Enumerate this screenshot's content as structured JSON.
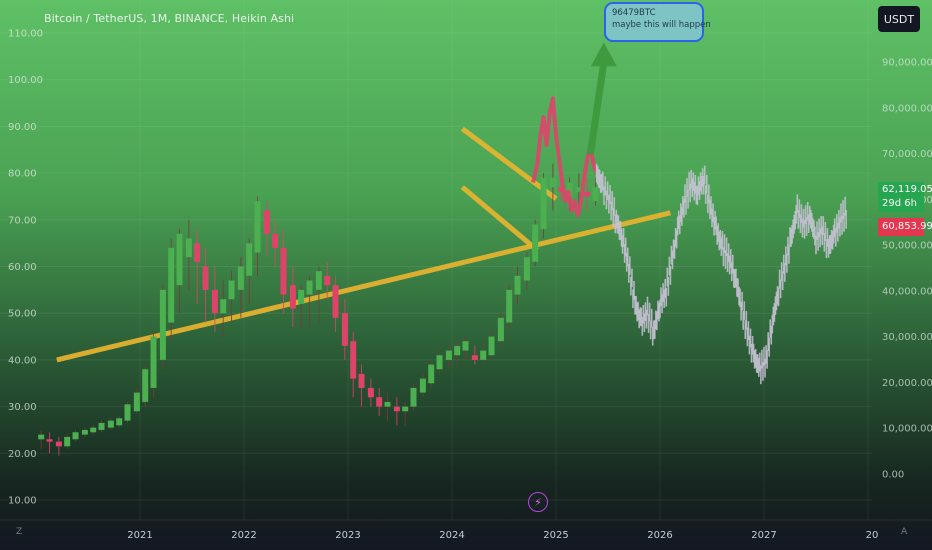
{
  "header": {
    "symbol_title": "Bitcoin / TetherUS, 1M, BINANCE, Heikin Ashi",
    "currency": "USDT"
  },
  "annotation": {
    "line1": "96479BTC",
    "line2": "maybe this will happen"
  },
  "price_tags": {
    "current_price": "62,119.05",
    "countdown": "29d 6h",
    "low_price": "60,853.99"
  },
  "footer": {
    "left_marker": "Z",
    "right_marker": "A"
  },
  "icons": {
    "flash": "lightning-bolt-icon"
  },
  "colors": {
    "bull_candle": "#4caf50",
    "bear_candle": "#e0436a",
    "trendline": "#e8b430",
    "projection": "#c8c3d6",
    "arrow": "#3e9a3c"
  },
  "chart_data": {
    "type": "candlestick",
    "chart_style": "Heikin Ashi",
    "interval": "1M",
    "left_axis": {
      "ticks": [
        "110.00",
        "100.00",
        "90.00",
        "80.00",
        "70.00",
        "60.00",
        "50.00",
        "40.00",
        "30.00",
        "20.00",
        "10.00"
      ],
      "range": [
        5,
        115
      ]
    },
    "right_axis": {
      "ticks": [
        "90,000.00",
        "80,000.00",
        "70,000.00",
        "60,000.00",
        "50,000.00",
        "40,000.00",
        "30,000.00",
        "20,000.00",
        "10,000.00",
        "0.00"
      ],
      "range": [
        -5000,
        97000
      ]
    },
    "x_axis": {
      "ticks": [
        "2021",
        "2022",
        "2023",
        "2024",
        "2025",
        "2026",
        "2027",
        "20"
      ],
      "range": [
        2020.0,
        2028.6
      ]
    },
    "candles": [
      {
        "t": 2020.05,
        "o": 23,
        "h": 25,
        "l": 21,
        "c": 24
      },
      {
        "t": 2020.13,
        "o": 23,
        "h": 24.5,
        "l": 20,
        "c": 22.5
      },
      {
        "t": 2020.22,
        "o": 22.5,
        "h": 23.5,
        "l": 19.5,
        "c": 21.5
      },
      {
        "t": 2020.3,
        "o": 21.5,
        "h": 24,
        "l": 21,
        "c": 23.5
      },
      {
        "t": 2020.38,
        "o": 23,
        "h": 25,
        "l": 22.5,
        "c": 24.5
      },
      {
        "t": 2020.47,
        "o": 24,
        "h": 25.5,
        "l": 23.5,
        "c": 25
      },
      {
        "t": 2020.55,
        "o": 24.5,
        "h": 26,
        "l": 24,
        "c": 25.5
      },
      {
        "t": 2020.63,
        "o": 25,
        "h": 27,
        "l": 24.5,
        "c": 26.5
      },
      {
        "t": 2020.72,
        "o": 25.5,
        "h": 27.5,
        "l": 25,
        "c": 27
      },
      {
        "t": 2020.8,
        "o": 26,
        "h": 28,
        "l": 25.5,
        "c": 27.5
      },
      {
        "t": 2020.88,
        "o": 27,
        "h": 31,
        "l": 26.5,
        "c": 30.5
      },
      {
        "t": 2020.97,
        "o": 29,
        "h": 34,
        "l": 28.5,
        "c": 33
      },
      {
        "t": 2021.05,
        "o": 31,
        "h": 39,
        "l": 30,
        "c": 38
      },
      {
        "t": 2021.13,
        "o": 34,
        "h": 46,
        "l": 32,
        "c": 45
      },
      {
        "t": 2021.22,
        "o": 40,
        "h": 56,
        "l": 38,
        "c": 55
      },
      {
        "t": 2021.3,
        "o": 48,
        "h": 66,
        "l": 44,
        "c": 64
      },
      {
        "t": 2021.38,
        "o": 56,
        "h": 68,
        "l": 50,
        "c": 67
      },
      {
        "t": 2021.47,
        "o": 62,
        "h": 70,
        "l": 55,
        "c": 66
      },
      {
        "t": 2021.55,
        "o": 65,
        "h": 68,
        "l": 52,
        "c": 61
      },
      {
        "t": 2021.63,
        "o": 60,
        "h": 64,
        "l": 48,
        "c": 55
      },
      {
        "t": 2021.72,
        "o": 55,
        "h": 60,
        "l": 46,
        "c": 50
      },
      {
        "t": 2021.8,
        "o": 50,
        "h": 57,
        "l": 45,
        "c": 53
      },
      {
        "t": 2021.88,
        "o": 53,
        "h": 59,
        "l": 48,
        "c": 57
      },
      {
        "t": 2021.97,
        "o": 55,
        "h": 62,
        "l": 49,
        "c": 60
      },
      {
        "t": 2022.05,
        "o": 58,
        "h": 66,
        "l": 52,
        "c": 65
      },
      {
        "t": 2022.13,
        "o": 63,
        "h": 75,
        "l": 58,
        "c": 74
      },
      {
        "t": 2022.22,
        "o": 72,
        "h": 74,
        "l": 62,
        "c": 67
      },
      {
        "t": 2022.3,
        "o": 67,
        "h": 70,
        "l": 60,
        "c": 64
      },
      {
        "t": 2022.38,
        "o": 64,
        "h": 68,
        "l": 50,
        "c": 54
      },
      {
        "t": 2022.47,
        "o": 56,
        "h": 60,
        "l": 47,
        "c": 51
      },
      {
        "t": 2022.55,
        "o": 52,
        "h": 56,
        "l": 47,
        "c": 55
      },
      {
        "t": 2022.63,
        "o": 54,
        "h": 58,
        "l": 47,
        "c": 57
      },
      {
        "t": 2022.72,
        "o": 55,
        "h": 60,
        "l": 48,
        "c": 59
      },
      {
        "t": 2022.8,
        "o": 58,
        "h": 61,
        "l": 53,
        "c": 56
      },
      {
        "t": 2022.88,
        "o": 56,
        "h": 58,
        "l": 46,
        "c": 49
      },
      {
        "t": 2022.97,
        "o": 50,
        "h": 53,
        "l": 40,
        "c": 43
      },
      {
        "t": 2023.05,
        "o": 44,
        "h": 46,
        "l": 32,
        "c": 36
      },
      {
        "t": 2023.13,
        "o": 37,
        "h": 39,
        "l": 30,
        "c": 34
      },
      {
        "t": 2023.22,
        "o": 34,
        "h": 36,
        "l": 30,
        "c": 32
      },
      {
        "t": 2023.3,
        "o": 32,
        "h": 34,
        "l": 28,
        "c": 30
      },
      {
        "t": 2023.38,
        "o": 30,
        "h": 33,
        "l": 27,
        "c": 31
      },
      {
        "t": 2023.47,
        "o": 30,
        "h": 32,
        "l": 26,
        "c": 29
      },
      {
        "t": 2023.55,
        "o": 29,
        "h": 31,
        "l": 26,
        "c": 30
      },
      {
        "t": 2023.63,
        "o": 30,
        "h": 35,
        "l": 29,
        "c": 34
      },
      {
        "t": 2023.72,
        "o": 33,
        "h": 37,
        "l": 32,
        "c": 36
      },
      {
        "t": 2023.8,
        "o": 35,
        "h": 40,
        "l": 34,
        "c": 39
      },
      {
        "t": 2023.88,
        "o": 38,
        "h": 42,
        "l": 37,
        "c": 41
      },
      {
        "t": 2023.97,
        "o": 40,
        "h": 43,
        "l": 38,
        "c": 42
      },
      {
        "t": 2024.05,
        "o": 41,
        "h": 44,
        "l": 39,
        "c": 43
      },
      {
        "t": 2024.13,
        "o": 42,
        "h": 45,
        "l": 40,
        "c": 44
      },
      {
        "t": 2024.22,
        "o": 41,
        "h": 43,
        "l": 39,
        "c": 40
      },
      {
        "t": 2024.3,
        "o": 40,
        "h": 44,
        "l": 39,
        "c": 42
      },
      {
        "t": 2024.38,
        "o": 41,
        "h": 46,
        "l": 40,
        "c": 45
      },
      {
        "t": 2024.47,
        "o": 44,
        "h": 50,
        "l": 43,
        "c": 49
      },
      {
        "t": 2024.55,
        "o": 48,
        "h": 56,
        "l": 47,
        "c": 55
      },
      {
        "t": 2024.63,
        "o": 54,
        "h": 60,
        "l": 52,
        "c": 58
      },
      {
        "t": 2024.72,
        "o": 57,
        "h": 63,
        "l": 55,
        "c": 62
      },
      {
        "t": 2024.8,
        "o": 61,
        "h": 70,
        "l": 60,
        "c": 69
      },
      {
        "t": 2024.88,
        "o": 68,
        "h": 80,
        "l": 66,
        "c": 79
      },
      {
        "t": 2024.97,
        "o": 77,
        "h": 82,
        "l": 72,
        "c": 79
      },
      {
        "t": 2025.05,
        "o": 77,
        "h": 80,
        "l": 74,
        "c": 76
      },
      {
        "t": 2025.13,
        "o": 75,
        "h": 79,
        "l": 72,
        "c": 78
      },
      {
        "t": 2025.22,
        "o": 76,
        "h": 80,
        "l": 73,
        "c": 77
      },
      {
        "t": 2025.3,
        "o": 76,
        "h": 79,
        "l": 72,
        "c": 75
      },
      {
        "t": 2025.38,
        "o": 74,
        "h": 79,
        "l": 73,
        "c": 77
      },
      {
        "t": 2025.47,
        "o": 75,
        "h": 79,
        "l": 74,
        "c": 78
      }
    ],
    "trendlines": [
      {
        "name": "long-support",
        "x1": 2020.2,
        "y1": 40,
        "x2": 2026.1,
        "y2": 71.5
      },
      {
        "name": "upper-wedge",
        "x1": 2024.1,
        "y1": 89.5,
        "x2": 2025.0,
        "y2": 74.5
      },
      {
        "name": "lower-wedge",
        "x1": 2024.1,
        "y1": 77,
        "x2": 2024.82,
        "y2": 63.5
      }
    ],
    "red_path": [
      [
        2024.78,
        78
      ],
      [
        2024.82,
        82
      ],
      [
        2024.85,
        88
      ],
      [
        2024.88,
        92
      ],
      [
        2024.91,
        86
      ],
      [
        2024.94,
        93
      ],
      [
        2024.97,
        96
      ],
      [
        2025.0,
        88
      ],
      [
        2025.03,
        83
      ],
      [
        2025.06,
        78
      ],
      [
        2025.09,
        74
      ],
      [
        2025.12,
        76
      ],
      [
        2025.15,
        72
      ],
      [
        2025.18,
        74
      ],
      [
        2025.21,
        71
      ],
      [
        2025.24,
        74
      ],
      [
        2025.27,
        79
      ],
      [
        2025.3,
        83
      ],
      [
        2025.33,
        86
      ],
      [
        2025.36,
        82
      ],
      [
        2025.39,
        80
      ]
    ],
    "projection_path": [
      [
        2025.39,
        80
      ],
      [
        2025.45,
        77
      ],
      [
        2025.52,
        74
      ],
      [
        2025.58,
        70
      ],
      [
        2025.64,
        66
      ],
      [
        2025.7,
        60
      ],
      [
        2025.76,
        52
      ],
      [
        2025.82,
        48
      ],
      [
        2025.88,
        50
      ],
      [
        2025.94,
        46
      ],
      [
        2026.0,
        52
      ],
      [
        2026.06,
        55
      ],
      [
        2026.12,
        62
      ],
      [
        2026.18,
        69
      ],
      [
        2026.24,
        74
      ],
      [
        2026.3,
        78
      ],
      [
        2026.36,
        76
      ],
      [
        2026.42,
        79
      ],
      [
        2026.48,
        73
      ],
      [
        2026.54,
        68
      ],
      [
        2026.6,
        64
      ],
      [
        2026.66,
        62
      ],
      [
        2026.72,
        58
      ],
      [
        2026.78,
        52
      ],
      [
        2026.84,
        46
      ],
      [
        2026.9,
        41
      ],
      [
        2026.96,
        38
      ],
      [
        2027.02,
        40
      ],
      [
        2027.08,
        48
      ],
      [
        2027.14,
        55
      ],
      [
        2027.2,
        60
      ],
      [
        2027.26,
        66
      ],
      [
        2027.32,
        72
      ],
      [
        2027.38,
        69
      ],
      [
        2027.44,
        71
      ],
      [
        2027.5,
        66
      ],
      [
        2027.56,
        68
      ],
      [
        2027.62,
        64
      ],
      [
        2027.68,
        67
      ],
      [
        2027.74,
        70
      ],
      [
        2027.8,
        72
      ]
    ],
    "arrow": {
      "from": [
        2025.33,
        84
      ],
      "to": [
        2025.46,
        108
      ]
    }
  }
}
